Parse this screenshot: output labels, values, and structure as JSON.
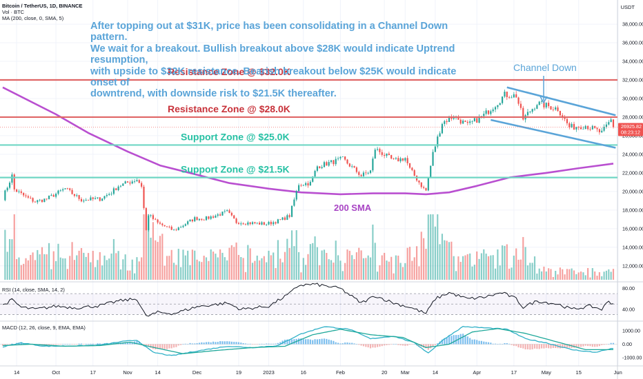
{
  "header": {
    "symbol": "Bitcoin / TetherUS, 1D, BINANCE",
    "vol_indicator": "Vol · BTC",
    "ma_indicator": "MA (200, close, 0, SMA, 5)",
    "currency": "USDT"
  },
  "commentary": {
    "line1": "After topping out at $31K, price has been consolidating in a Channel Down pattern.",
    "line2": "We wait for a breakout. Bullish breakout above $28K would indicate Uptrend resumption,",
    "line3": "with upside to $32K resistance. Bearish breakout below $25K would indicate onset of",
    "line4": "downtrend, with downside risk to $21.5K thereafter."
  },
  "colors": {
    "up": "#26a69a",
    "down": "#ef5350",
    "resistance": "#e06666",
    "support": "#6fd6c4",
    "sma": "#b94fd0",
    "channel": "#5aa4d8",
    "rsi": "#131722",
    "macd": "#2fb0c7",
    "signal": "#1ea89a"
  },
  "chart_data": [
    {
      "type": "candlestick",
      "title": "Bitcoin / TetherUS, 1D, BINANCE",
      "y_axis_ticks": [
        12000,
        14000,
        16000,
        18000,
        20000,
        22000,
        24000,
        26000,
        28000,
        30000,
        32000,
        34000,
        36000,
        38000
      ],
      "ylim": [
        10500,
        40600
      ],
      "x_axis_ticks": [
        {
          "label": "14",
          "date": "2022-09-14"
        },
        {
          "label": "Oct",
          "date": "2022-10-01"
        },
        {
          "label": "17",
          "date": "2022-10-17"
        },
        {
          "label": "Nov",
          "date": "2022-11-01"
        },
        {
          "label": "14",
          "date": "2022-11-14"
        },
        {
          "label": "Dec",
          "date": "2022-12-01"
        },
        {
          "label": "19",
          "date": "2022-12-19"
        },
        {
          "label": "2023",
          "date": "2023-01-01"
        },
        {
          "label": "16",
          "date": "2023-01-16"
        },
        {
          "label": "Feb",
          "date": "2023-02-01"
        },
        {
          "label": "20",
          "date": "2023-02-20"
        },
        {
          "label": "Mar",
          "date": "2023-03-01"
        },
        {
          "label": "14",
          "date": "2023-03-14"
        },
        {
          "label": "Apr",
          "date": "2023-04-01"
        },
        {
          "label": "17",
          "date": "2023-04-17"
        },
        {
          "label": "May",
          "date": "2023-05-01"
        },
        {
          "label": "15",
          "date": "2023-05-15"
        },
        {
          "label": "Jun",
          "date": "2023-06-01"
        }
      ],
      "start_date": "2022-09-08",
      "end_date": "2023-05-30",
      "close_path": [
        [
          "2022-09-08",
          19300
        ],
        [
          "2022-09-12",
          21700
        ],
        [
          "2022-09-13",
          20200
        ],
        [
          "2022-09-18",
          19400
        ],
        [
          "2022-09-22",
          18900
        ],
        [
          "2022-09-27",
          19200
        ],
        [
          "2022-10-05",
          20300
        ],
        [
          "2022-10-12",
          19100
        ],
        [
          "2022-10-20",
          19200
        ],
        [
          "2022-10-25",
          19900
        ],
        [
          "2022-10-28",
          20600
        ],
        [
          "2022-11-05",
          21300
        ],
        [
          "2022-11-07",
          20600
        ],
        [
          "2022-11-09",
          15800
        ],
        [
          "2022-11-10",
          17500
        ],
        [
          "2022-11-14",
          16600
        ],
        [
          "2022-11-21",
          15800
        ],
        [
          "2022-11-30",
          17100
        ],
        [
          "2022-12-05",
          17100
        ],
        [
          "2022-12-14",
          17800
        ],
        [
          "2022-12-18",
          16700
        ],
        [
          "2022-12-31",
          16500
        ],
        [
          "2023-01-06",
          16900
        ],
        [
          "2023-01-10",
          17400
        ],
        [
          "2023-01-14",
          20800
        ],
        [
          "2023-01-19",
          20900
        ],
        [
          "2023-01-22",
          22700
        ],
        [
          "2023-02-02",
          23500
        ],
        [
          "2023-02-10",
          21700
        ],
        [
          "2023-02-14",
          22200
        ],
        [
          "2023-02-16",
          24600
        ],
        [
          "2023-02-24",
          23300
        ],
        [
          "2023-03-01",
          23600
        ],
        [
          "2023-03-03",
          22400
        ],
        [
          "2023-03-09",
          20300
        ],
        [
          "2023-03-10",
          20100
        ],
        [
          "2023-03-13",
          24100
        ],
        [
          "2023-03-17",
          27400
        ],
        [
          "2023-03-22",
          28100
        ],
        [
          "2023-03-28",
          27100
        ],
        [
          "2023-04-04",
          28200
        ],
        [
          "2023-04-10",
          29600
        ],
        [
          "2023-04-13",
          30400
        ],
        [
          "2023-04-18",
          30300
        ],
        [
          "2023-04-21",
          27800
        ],
        [
          "2023-04-27",
          29500
        ],
        [
          "2023-05-06",
          28900
        ],
        [
          "2023-05-09",
          27700
        ],
        [
          "2023-05-11",
          26900
        ],
        [
          "2023-05-18",
          27100
        ],
        [
          "2023-05-25",
          26300
        ],
        [
          "2023-05-29",
          27700
        ],
        [
          "2023-05-30",
          26925.82
        ]
      ],
      "last_price": "26925.82",
      "countdown": "08:23:12",
      "horizontal_levels": [
        {
          "label": "Resistance Zone @ $32.0K",
          "value": 32000,
          "kind": "resistance"
        },
        {
          "label": "Resistance Zone @ $28.0K",
          "value": 28000,
          "kind": "resistance"
        },
        {
          "label": "Support Zone @ $25.0K",
          "value": 25000,
          "kind": "support"
        },
        {
          "label": "Support Zone @ $21.5K",
          "value": 21500,
          "kind": "support"
        }
      ],
      "sma_200": {
        "label": "200 SMA",
        "points": [
          [
            "2022-09-08",
            31200
          ],
          [
            "2022-10-01",
            28300
          ],
          [
            "2022-10-15",
            26300
          ],
          [
            "2022-11-01",
            24300
          ],
          [
            "2022-11-15",
            22800
          ],
          [
            "2022-12-01",
            21800
          ],
          [
            "2022-12-15",
            20900
          ],
          [
            "2023-01-01",
            20300
          ],
          [
            "2023-01-15",
            19900
          ],
          [
            "2023-02-01",
            19700
          ],
          [
            "2023-02-15",
            19800
          ],
          [
            "2023-03-01",
            19800
          ],
          [
            "2023-03-10",
            19700
          ],
          [
            "2023-03-20",
            19900
          ],
          [
            "2023-04-01",
            20600
          ],
          [
            "2023-04-15",
            21500
          ],
          [
            "2023-05-01",
            22000
          ],
          [
            "2023-05-15",
            22500
          ],
          [
            "2023-05-30",
            23000
          ]
        ]
      },
      "channel": {
        "label": "Channel Down",
        "upper": [
          [
            "2023-04-14",
            31200
          ],
          [
            "2023-05-31",
            28200
          ]
        ],
        "lower": [
          [
            "2023-04-07",
            27700
          ],
          [
            "2023-05-31",
            24700
          ]
        ]
      }
    },
    {
      "type": "bar",
      "title": "Vol · BTC",
      "note": "daily volume bars, colored by candle direction"
    },
    {
      "type": "line",
      "title": "RSI (14, close, SMA, 14, 2)",
      "y_axis_ticks": [
        40.0,
        80.0
      ],
      "ylim": [
        20,
        90
      ],
      "bands": [
        70,
        50,
        30
      ],
      "points": [
        [
          "2022-09-08",
          48
        ],
        [
          "2022-09-12",
          58
        ],
        [
          "2022-09-16",
          44
        ],
        [
          "2022-09-22",
          40
        ],
        [
          "2022-10-01",
          46
        ],
        [
          "2022-10-10",
          43
        ],
        [
          "2022-10-20",
          47
        ],
        [
          "2022-10-28",
          56
        ],
        [
          "2022-11-05",
          60
        ],
        [
          "2022-11-09",
          26
        ],
        [
          "2022-11-14",
          34
        ],
        [
          "2022-11-21",
          32
        ],
        [
          "2022-12-01",
          45
        ],
        [
          "2022-12-14",
          52
        ],
        [
          "2022-12-20",
          40
        ],
        [
          "2023-01-01",
          46
        ],
        [
          "2023-01-10",
          70
        ],
        [
          "2023-01-14",
          86
        ],
        [
          "2023-01-21",
          88
        ],
        [
          "2023-02-01",
          80
        ],
        [
          "2023-02-10",
          52
        ],
        [
          "2023-02-16",
          66
        ],
        [
          "2023-02-24",
          52
        ],
        [
          "2023-03-03",
          44
        ],
        [
          "2023-03-10",
          32
        ],
        [
          "2023-03-14",
          60
        ],
        [
          "2023-03-20",
          72
        ],
        [
          "2023-03-28",
          60
        ],
        [
          "2023-04-04",
          63
        ],
        [
          "2023-04-12",
          72
        ],
        [
          "2023-04-18",
          60
        ],
        [
          "2023-04-21",
          44
        ],
        [
          "2023-04-27",
          56
        ],
        [
          "2023-05-06",
          50
        ],
        [
          "2023-05-12",
          40
        ],
        [
          "2023-05-20",
          46
        ],
        [
          "2023-05-25",
          40
        ],
        [
          "2023-05-28",
          56
        ],
        [
          "2023-05-30",
          50
        ]
      ]
    },
    {
      "type": "line",
      "title": "MACD (12, 26, close, 9, EMA, EMA)",
      "y_axis_ticks": [
        -1000.0,
        0.0,
        1000.0
      ],
      "ylim": [
        -1600,
        1600
      ],
      "macd_points": [
        [
          "2022-09-08",
          -200
        ],
        [
          "2022-09-16",
          100
        ],
        [
          "2022-09-26",
          -150
        ],
        [
          "2022-10-10",
          -120
        ],
        [
          "2022-10-20",
          -60
        ],
        [
          "2022-10-30",
          200
        ],
        [
          "2022-11-05",
          300
        ],
        [
          "2022-11-12",
          -600
        ],
        [
          "2022-11-20",
          -850
        ],
        [
          "2022-12-01",
          -500
        ],
        [
          "2022-12-14",
          -150
        ],
        [
          "2022-12-25",
          -250
        ],
        [
          "2023-01-05",
          -100
        ],
        [
          "2023-01-14",
          700
        ],
        [
          "2023-01-25",
          1300
        ],
        [
          "2023-02-05",
          1100
        ],
        [
          "2023-02-14",
          400
        ],
        [
          "2023-02-24",
          600
        ],
        [
          "2023-03-05",
          100
        ],
        [
          "2023-03-11",
          -650
        ],
        [
          "2023-03-18",
          400
        ],
        [
          "2023-03-26",
          1300
        ],
        [
          "2023-04-05",
          1200
        ],
        [
          "2023-04-14",
          1100
        ],
        [
          "2023-04-22",
          400
        ],
        [
          "2023-05-01",
          100
        ],
        [
          "2023-05-12",
          -400
        ],
        [
          "2023-05-22",
          -600
        ],
        [
          "2023-05-30",
          -300
        ]
      ],
      "signal_points": [
        [
          "2022-09-08",
          -100
        ],
        [
          "2022-09-20",
          0
        ],
        [
          "2022-10-05",
          -150
        ],
        [
          "2022-10-20",
          -100
        ],
        [
          "2022-11-02",
          150
        ],
        [
          "2022-11-14",
          -300
        ],
        [
          "2022-11-25",
          -700
        ],
        [
          "2022-12-10",
          -450
        ],
        [
          "2022-12-25",
          -250
        ],
        [
          "2023-01-08",
          -150
        ],
        [
          "2023-01-20",
          700
        ],
        [
          "2023-02-01",
          1100
        ],
        [
          "2023-02-14",
          700
        ],
        [
          "2023-02-28",
          500
        ],
        [
          "2023-03-10",
          -250
        ],
        [
          "2023-03-20",
          0
        ],
        [
          "2023-03-30",
          900
        ],
        [
          "2023-04-10",
          1150
        ],
        [
          "2023-04-22",
          800
        ],
        [
          "2023-05-05",
          200
        ],
        [
          "2023-05-18",
          -400
        ],
        [
          "2023-05-30",
          -400
        ]
      ]
    }
  ]
}
